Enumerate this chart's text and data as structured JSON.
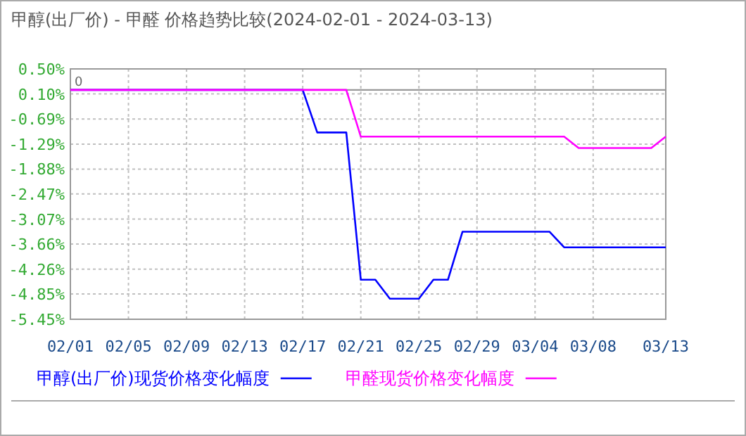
{
  "chart_data": {
    "type": "line",
    "title": "甲醇(出厂价) - 甲醛 价格趋势比较(2024-02-01 - 2024-03-13)",
    "series": [
      {
        "name": "甲醇(出厂价)现货价格变化幅度",
        "color": "#0000ff",
        "x": [
          "2024-02-01",
          "2024-02-17",
          "2024-02-18",
          "2024-02-20",
          "2024-02-21",
          "2024-02-22",
          "2024-02-23",
          "2024-02-25",
          "2024-02-26",
          "2024-02-27",
          "2024-02-28",
          "2024-03-05",
          "2024-03-06",
          "2024-03-13"
        ],
        "values": [
          0,
          0,
          -1.01,
          -1.01,
          -4.51,
          -4.51,
          -4.96,
          -4.96,
          -4.51,
          -4.51,
          -3.37,
          -3.37,
          -3.74,
          -3.74
        ]
      },
      {
        "name": "甲醛现货价格变化幅度",
        "color": "#ff00ff",
        "x": [
          "2024-02-01",
          "2024-02-20",
          "2024-02-21",
          "2024-03-06",
          "2024-03-07",
          "2024-03-12",
          "2024-03-13"
        ],
        "values": [
          0,
          0,
          -1.11,
          -1.11,
          -1.38,
          -1.38,
          -1.11
        ]
      }
    ],
    "xlim": [
      "2024-02-01",
      "2024-03-13"
    ],
    "xticks": [
      {
        "value": "2024-02-01",
        "label": "02/01"
      },
      {
        "value": "2024-02-05",
        "label": "02/05"
      },
      {
        "value": "2024-02-09",
        "label": "02/09"
      },
      {
        "value": "2024-02-13",
        "label": "02/13"
      },
      {
        "value": "2024-02-17",
        "label": "02/17"
      },
      {
        "value": "2024-02-21",
        "label": "02/21"
      },
      {
        "value": "2024-02-25",
        "label": "02/25"
      },
      {
        "value": "2024-02-29",
        "label": "02/29"
      },
      {
        "value": "2024-03-04",
        "label": "03/04"
      },
      {
        "value": "2024-03-08",
        "label": "03/08"
      },
      {
        "value": "2024-03-13",
        "label": "03/13"
      }
    ],
    "ylim": [
      -5.45,
      0.5
    ],
    "yticks": [
      {
        "value": 0.5,
        "label": "0.50%"
      },
      {
        "value": -0.095,
        "label": "0.10%"
      },
      {
        "value": -0.69,
        "label": "-0.69%"
      },
      {
        "value": -1.29,
        "label": "-1.29%"
      },
      {
        "value": -1.88,
        "label": "-1.88%"
      },
      {
        "value": -2.47,
        "label": "-2.47%"
      },
      {
        "value": -3.07,
        "label": "-3.07%"
      },
      {
        "value": -3.66,
        "label": "-3.66%"
      },
      {
        "value": -4.26,
        "label": "-4.26%"
      },
      {
        "value": -4.85,
        "label": "-4.85%"
      },
      {
        "value": -5.45,
        "label": "-5.45%"
      }
    ],
    "ref_lines": [
      {
        "axis": "y",
        "value": 0,
        "label": "0",
        "color": "#999999"
      }
    ],
    "grid": true,
    "legend": "bottom"
  }
}
